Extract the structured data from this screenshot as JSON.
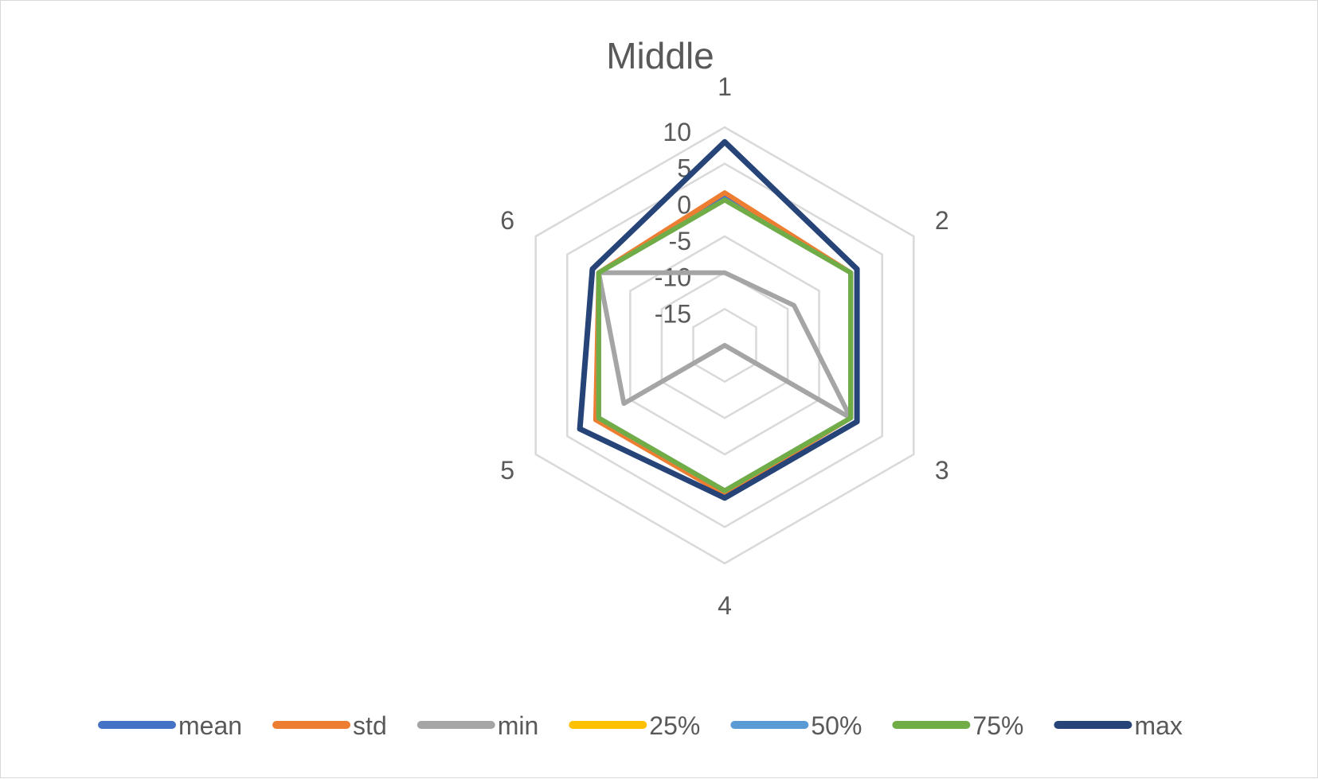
{
  "chart_data": {
    "type": "radar",
    "title": "Middle",
    "categories": [
      "1",
      "2",
      "3",
      "4",
      "5",
      "6"
    ],
    "ylim": [
      -20,
      10
    ],
    "ticks": [
      "10",
      "5",
      "0",
      "-5",
      "-10",
      "-15"
    ],
    "tick_values": [
      10,
      5,
      0,
      -5,
      -10,
      -15
    ],
    "grid": true,
    "legend_position": "bottom",
    "series": [
      {
        "name": "mean",
        "color": "#4472C4",
        "values": [
          0.5,
          0,
          0,
          0,
          0,
          0
        ]
      },
      {
        "name": "std",
        "color": "#ED7D31",
        "values": [
          1,
          0,
          0,
          0.5,
          0.5,
          0
        ]
      },
      {
        "name": "min",
        "color": "#A5A5A5",
        "values": [
          -10,
          -9,
          0,
          -20,
          -4,
          0
        ]
      },
      {
        "name": "25%",
        "color": "#FFC000",
        "values": [
          0,
          0,
          0,
          0,
          0,
          0
        ]
      },
      {
        "name": "50%",
        "color": "#5B9BD5",
        "values": [
          0,
          0,
          0,
          0,
          0,
          0
        ]
      },
      {
        "name": "75%",
        "color": "#70AD47",
        "values": [
          0,
          0,
          0,
          0,
          0,
          0
        ]
      },
      {
        "name": "max",
        "color": "#264478",
        "values": [
          8,
          1,
          1,
          1,
          3,
          1
        ]
      }
    ]
  }
}
